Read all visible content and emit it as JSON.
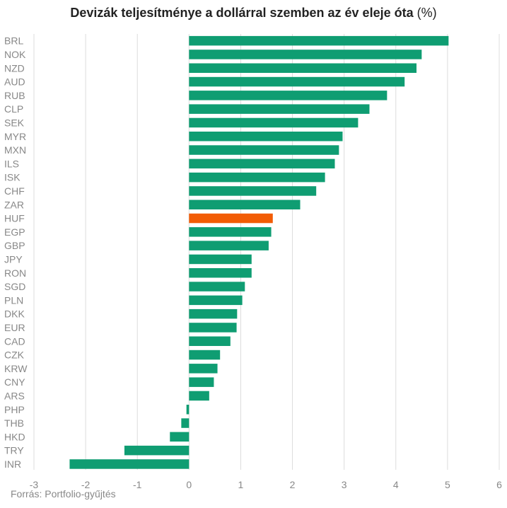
{
  "title": "Devizák teljesítménye a dollárral szemben az év eleje óta",
  "title_unit": "(%)",
  "source": "Forrás: Portfolio-gyűjtés",
  "colors": {
    "bar": "#0f9d72",
    "highlight": "#f25c05",
    "grid": "#dcdcdc",
    "tick_text": "#888888"
  },
  "chart_data": {
    "type": "bar",
    "orientation": "horizontal",
    "title": "Devizák teljesítménye a dollárral szemben az év eleje óta (%)",
    "xlabel": "",
    "ylabel": "",
    "xlim": [
      -3,
      6
    ],
    "xticks": [
      -3,
      -2,
      -1,
      0,
      1,
      2,
      3,
      4,
      5,
      6
    ],
    "grid": true,
    "highlight": "HUF",
    "categories": [
      "BRL",
      "NOK",
      "NZD",
      "AUD",
      "RUB",
      "CLP",
      "SEK",
      "MYR",
      "MXN",
      "ILS",
      "ISK",
      "CHF",
      "ZAR",
      "HUF",
      "EGP",
      "GBP",
      "JPY",
      "RON",
      "SGD",
      "PLN",
      "DKK",
      "EUR",
      "CAD",
      "CZK",
      "KRW",
      "CNY",
      "ARS",
      "PHP",
      "THB",
      "HKD",
      "TRY",
      "INR"
    ],
    "values": [
      5.02,
      4.5,
      4.4,
      4.17,
      3.83,
      3.49,
      3.27,
      2.97,
      2.9,
      2.82,
      2.63,
      2.46,
      2.15,
      1.62,
      1.59,
      1.54,
      1.21,
      1.21,
      1.08,
      1.03,
      0.93,
      0.92,
      0.8,
      0.6,
      0.55,
      0.48,
      0.39,
      -0.05,
      -0.15,
      -0.37,
      -1.25,
      -2.31
    ]
  }
}
